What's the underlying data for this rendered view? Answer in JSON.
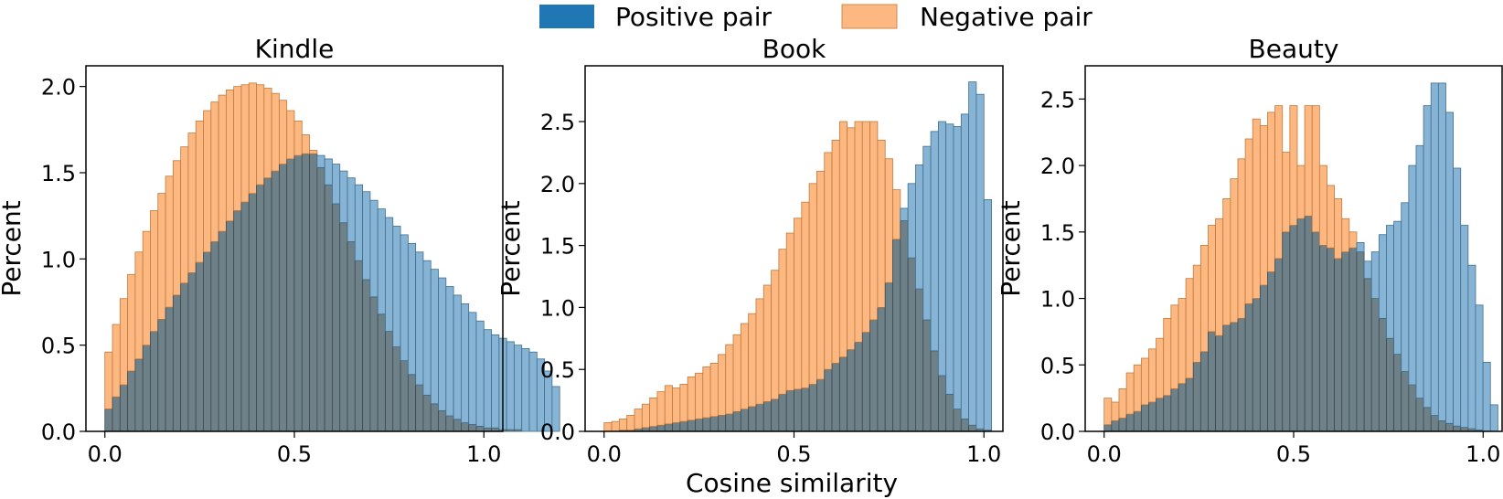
{
  "legend": {
    "items": [
      {
        "label": "Positive pair",
        "color": "#1f77b4"
      },
      {
        "label": "Negative pair",
        "color": "#ff7f0e"
      }
    ]
  },
  "xlabel": "Cosine similarity",
  "colors": {
    "positive": "#1f77b4",
    "negative": "#ff7f0e",
    "overlap": "#6b7a80"
  },
  "chart_data": [
    {
      "type": "histogram",
      "title": "Kindle",
      "xlabel": "",
      "ylabel": "Percent",
      "xlim": [
        -0.05,
        1.05
      ],
      "ylim": [
        0,
        2.12
      ],
      "xticks": [
        0.0,
        0.5,
        1.0
      ],
      "xtick_labels": [
        "0.0",
        "0.5",
        "1.0"
      ],
      "yticks": [
        0.0,
        0.5,
        1.0,
        1.5,
        2.0
      ],
      "ytick_labels": [
        "0.0",
        "0.5",
        "1.0",
        "1.5",
        "2.0"
      ],
      "bin_start": 0.0,
      "bin_width": 0.02,
      "series": [
        {
          "name": "Positive pair",
          "values": [
            0.13,
            0.2,
            0.27,
            0.35,
            0.42,
            0.5,
            0.58,
            0.65,
            0.72,
            0.79,
            0.86,
            0.92,
            0.98,
            1.04,
            1.1,
            1.16,
            1.22,
            1.28,
            1.33,
            1.38,
            1.43,
            1.47,
            1.51,
            1.55,
            1.58,
            1.6,
            1.61,
            1.61,
            1.6,
            1.58,
            1.55,
            1.51,
            1.47,
            1.43,
            1.39,
            1.34,
            1.29,
            1.24,
            1.19,
            1.14,
            1.09,
            1.04,
            0.99,
            0.94,
            0.89,
            0.84,
            0.79,
            0.74,
            0.69,
            0.64,
            0.59,
            0.56,
            0.54,
            0.52,
            0.5,
            0.48,
            0.46,
            0.42,
            0.35,
            0.26
          ]
        },
        {
          "name": "Negative pair",
          "values": [
            0.46,
            0.62,
            0.77,
            0.91,
            1.04,
            1.16,
            1.28,
            1.38,
            1.48,
            1.57,
            1.65,
            1.73,
            1.8,
            1.86,
            1.91,
            1.95,
            1.98,
            2.0,
            2.01,
            2.02,
            2.01,
            1.99,
            1.96,
            1.92,
            1.86,
            1.8,
            1.72,
            1.63,
            1.53,
            1.43,
            1.32,
            1.21,
            1.1,
            0.99,
            0.88,
            0.78,
            0.68,
            0.58,
            0.49,
            0.41,
            0.33,
            0.27,
            0.21,
            0.16,
            0.12,
            0.09,
            0.07,
            0.05,
            0.04,
            0.03,
            0.02,
            0.02,
            0.01,
            0.01,
            0.01,
            0.0,
            0.0,
            0.0,
            0.0,
            0.0
          ]
        }
      ]
    },
    {
      "type": "histogram",
      "title": "Book",
      "xlabel": "",
      "ylabel": "Percent",
      "xlim": [
        -0.05,
        1.05
      ],
      "ylim": [
        0,
        2.95
      ],
      "xticks": [
        0.0,
        0.5,
        1.0
      ],
      "xtick_labels": [
        "0.0",
        "0.5",
        "1.0"
      ],
      "yticks": [
        0.0,
        0.5,
        1.0,
        1.5,
        2.0,
        2.5
      ],
      "ytick_labels": [
        "0.0",
        "0.5",
        "1.0",
        "1.5",
        "2.0",
        "2.5"
      ],
      "bin_start": 0.0,
      "bin_width": 0.02,
      "series": [
        {
          "name": "Positive pair",
          "values": [
            0.0,
            0.0,
            0.01,
            0.01,
            0.02,
            0.03,
            0.04,
            0.05,
            0.06,
            0.07,
            0.08,
            0.09,
            0.1,
            0.11,
            0.12,
            0.13,
            0.14,
            0.16,
            0.18,
            0.2,
            0.22,
            0.24,
            0.26,
            0.3,
            0.33,
            0.34,
            0.35,
            0.38,
            0.42,
            0.5,
            0.55,
            0.6,
            0.66,
            0.72,
            0.8,
            0.9,
            1.0,
            1.2,
            1.55,
            1.8,
            2.0,
            2.15,
            2.3,
            2.42,
            2.5,
            2.48,
            2.46,
            2.56,
            2.82,
            2.72,
            1.87
          ]
        },
        {
          "name": "Negative pair",
          "values": [
            0.07,
            0.08,
            0.1,
            0.13,
            0.18,
            0.22,
            0.27,
            0.32,
            0.37,
            0.35,
            0.38,
            0.44,
            0.47,
            0.52,
            0.55,
            0.62,
            0.7,
            0.78,
            0.87,
            0.95,
            1.07,
            1.18,
            1.3,
            1.47,
            1.6,
            1.72,
            1.85,
            2.0,
            2.1,
            2.25,
            2.35,
            2.5,
            2.45,
            2.5,
            2.5,
            2.5,
            2.35,
            2.2,
            1.95,
            1.7,
            1.4,
            1.15,
            0.9,
            0.65,
            0.45,
            0.3,
            0.18,
            0.1,
            0.05,
            0.02,
            0.01
          ]
        }
      ]
    },
    {
      "type": "histogram",
      "title": "Beauty",
      "xlabel": "",
      "ylabel": "Percent",
      "xlim": [
        -0.05,
        1.05
      ],
      "ylim": [
        0,
        2.75
      ],
      "xticks": [
        0.0,
        0.5,
        1.0
      ],
      "xtick_labels": [
        "0.0",
        "0.5",
        "1.0"
      ],
      "yticks": [
        0.0,
        0.5,
        1.0,
        1.5,
        2.0,
        2.5
      ],
      "ytick_labels": [
        "0.0",
        "0.5",
        "1.0",
        "1.5",
        "2.0",
        "2.5"
      ],
      "bin_start": 0.0,
      "bin_width": 0.0196,
      "series": [
        {
          "name": "Positive pair",
          "values": [
            0.05,
            0.08,
            0.1,
            0.13,
            0.15,
            0.2,
            0.22,
            0.25,
            0.27,
            0.32,
            0.36,
            0.4,
            0.52,
            0.6,
            0.75,
            0.72,
            0.8,
            0.82,
            0.85,
            0.96,
            1.0,
            1.1,
            1.2,
            1.3,
            1.5,
            1.55,
            1.6,
            1.62,
            1.5,
            1.4,
            1.38,
            1.3,
            1.35,
            1.38,
            1.42,
            1.28,
            1.35,
            1.48,
            1.55,
            1.58,
            1.72,
            2.0,
            2.15,
            2.45,
            2.62,
            2.62,
            2.4,
            1.98,
            1.55,
            1.25,
            0.95,
            0.52,
            0.2
          ]
        },
        {
          "name": "Negative pair",
          "values": [
            0.25,
            0.22,
            0.32,
            0.44,
            0.5,
            0.55,
            0.62,
            0.7,
            0.85,
            0.95,
            1.0,
            1.15,
            1.25,
            1.4,
            1.55,
            1.6,
            1.75,
            1.9,
            2.05,
            2.2,
            2.35,
            2.3,
            2.4,
            2.45,
            2.1,
            2.45,
            2.0,
            2.45,
            2.45,
            2.0,
            1.85,
            1.75,
            1.6,
            1.5,
            1.35,
            1.15,
            1.0,
            0.85,
            0.7,
            0.58,
            0.45,
            0.35,
            0.25,
            0.18,
            0.12,
            0.08,
            0.06,
            0.04,
            0.03,
            0.02,
            0.01,
            0.0,
            0.0
          ]
        }
      ]
    }
  ]
}
